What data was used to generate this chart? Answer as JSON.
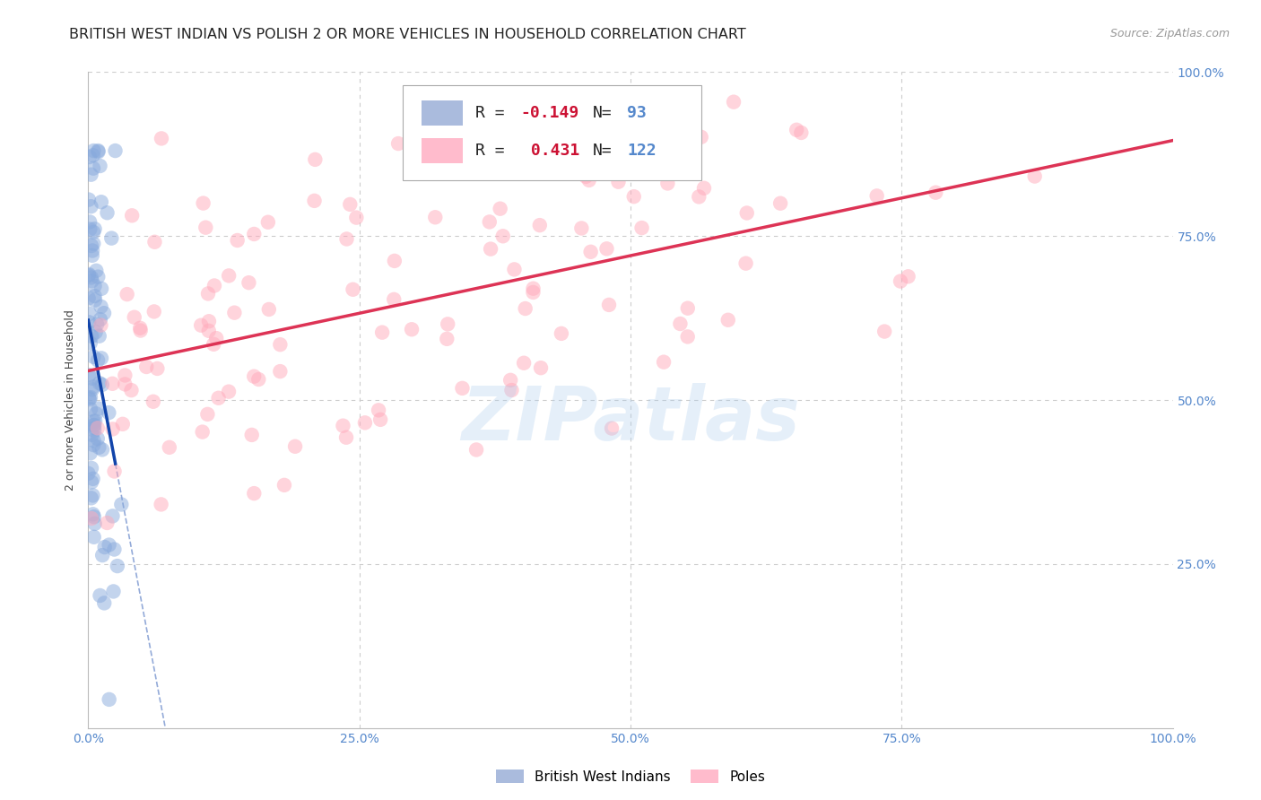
{
  "title": "BRITISH WEST INDIAN VS POLISH 2 OR MORE VEHICLES IN HOUSEHOLD CORRELATION CHART",
  "source": "Source: ZipAtlas.com",
  "ylabel": "2 or more Vehicles in Household",
  "watermark": "ZIPatlas",
  "R_bwi": -0.149,
  "N_bwi": 93,
  "R_polish": 0.431,
  "N_polish": 122,
  "color_bwi": "#88aadd",
  "color_polish": "#ffaabb",
  "color_bwi_line": "#1144aa",
  "color_polish_line": "#dd3355",
  "color_bwi_legend": "#aabbdd",
  "color_polish_legend": "#ffbbcc",
  "xlim": [
    0.0,
    1.0
  ],
  "ylim": [
    0.0,
    1.0
  ],
  "xticks": [
    0.0,
    0.25,
    0.5,
    0.75,
    1.0
  ],
  "yticks": [
    0.0,
    0.25,
    0.5,
    0.75,
    1.0
  ],
  "xticklabels": [
    "0.0%",
    "25.0%",
    "50.0%",
    "75.0%",
    "100.0%"
  ],
  "right_yticklabels": [
    "",
    "25.0%",
    "50.0%",
    "75.0%",
    "100.0%"
  ],
  "tick_color": "#5588cc",
  "background_color": "#ffffff",
  "grid_color": "#cccccc",
  "title_fontsize": 11.5,
  "axis_label_fontsize": 9,
  "tick_fontsize": 10,
  "legend_fontsize": 13,
  "watermark_fontsize": 60
}
